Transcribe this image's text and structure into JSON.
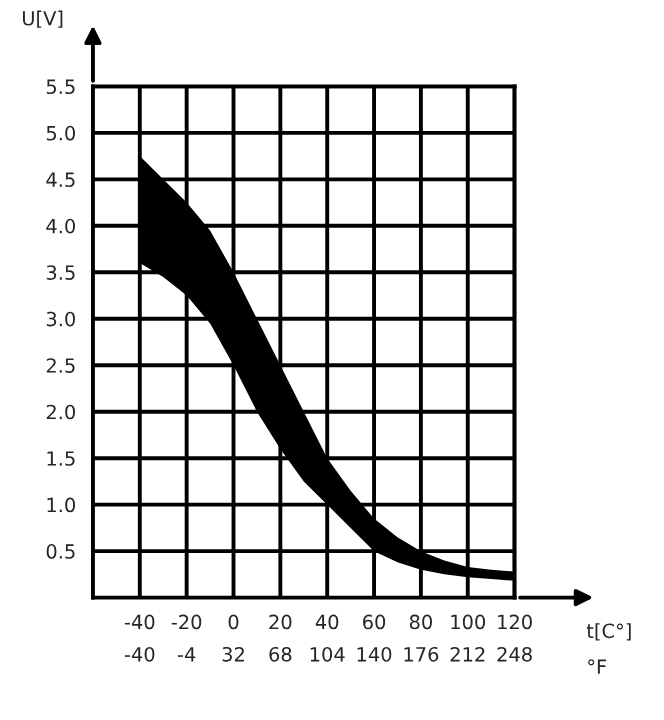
{
  "chart_data": {
    "type": "area",
    "xlabel": "t[C°]",
    "ylabel": "U[V]",
    "x2label": "°F",
    "x": [
      -40,
      -30,
      -20,
      -10,
      0,
      10,
      20,
      30,
      40,
      50,
      60,
      70,
      80,
      90,
      100,
      110,
      120
    ],
    "series": [
      {
        "color": "#000000",
        "values": [
          null,
          null,
          null,
          null,
          null,
          null,
          null,
          null,
          null,
          null,
          null,
          null,
          null,
          null,
          null,
          null,
          null
        ],
        "upper": [
          4.75,
          4.5,
          4.25,
          3.95,
          3.5,
          3.0,
          2.5,
          2.0,
          1.5,
          1.15,
          0.85,
          0.65,
          0.5,
          0.4,
          0.33,
          0.3,
          0.28
        ],
        "lower": [
          3.6,
          3.45,
          3.25,
          2.95,
          2.5,
          2.0,
          1.6,
          1.25,
          1.0,
          0.75,
          0.5,
          0.38,
          0.3,
          0.25,
          0.22,
          0.2,
          0.18
        ]
      }
    ],
    "xlim": [
      -60,
      120
    ],
    "xticks": [
      -40,
      -20,
      0,
      20,
      40,
      60,
      80,
      100,
      120
    ],
    "x2lim": [
      -76,
      248
    ],
    "x2ticks": [
      -40,
      -4,
      32,
      68,
      104,
      140,
      176,
      212,
      248
    ],
    "ylim": [
      0,
      5.5
    ],
    "yticks": [
      0.5,
      {
        "value": 1,
        "label": "1.0"
      },
      1.5,
      {
        "value": 2,
        "label": "2.0"
      },
      2.5,
      {
        "value": 3,
        "label": "3.0"
      },
      3.5,
      {
        "value": 4,
        "label": "4.0"
      },
      4.5,
      {
        "value": 5,
        "label": "5.0"
      },
      5.5
    ],
    "grid": true
  }
}
